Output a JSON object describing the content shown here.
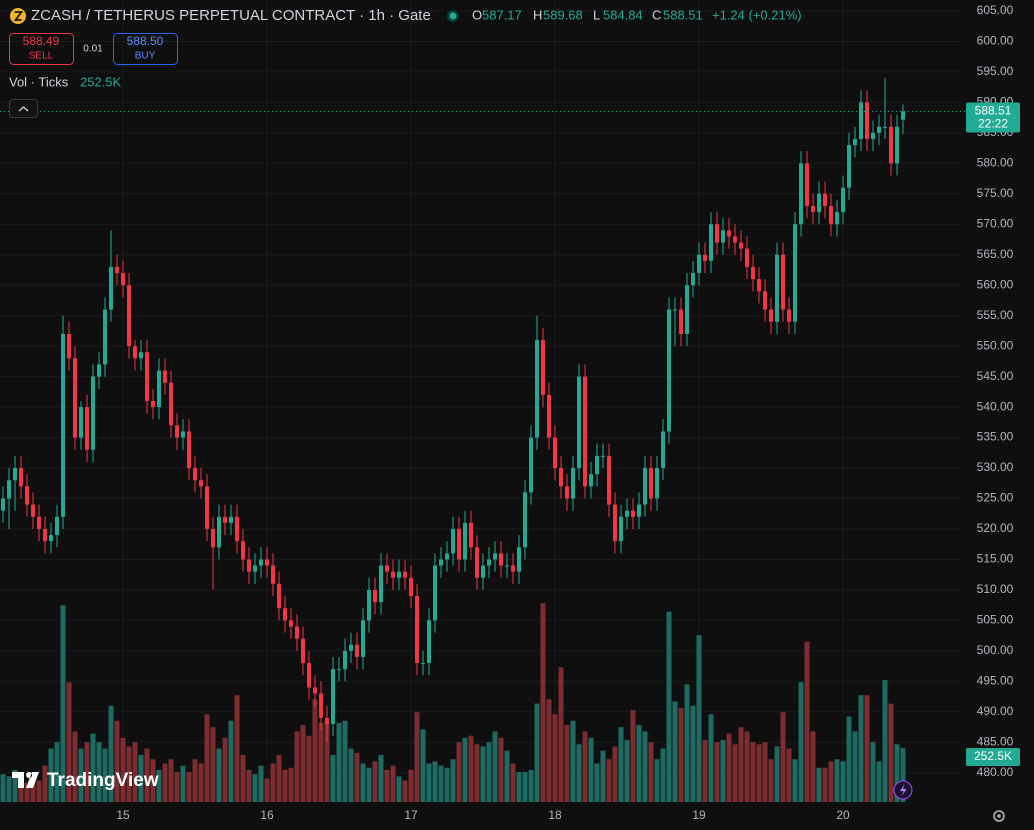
{
  "header": {
    "title": "ZCASH / TETHERUS PERPETUAL CONTRACT · 1h · Gate",
    "ohlc_keys": [
      "O",
      "H",
      "L",
      "C"
    ],
    "change": "+1.24 (+0.21%)",
    "sell_price": "588.49",
    "sell_label": "SELL",
    "spread": "0.01",
    "buy_price": "588.50",
    "buy_label": "BUY",
    "volume_label": "Vol · Ticks",
    "countdown": "22:22",
    "brand": "TradingView"
  },
  "chart_data": {
    "type": "candlestick",
    "categories": [
      null,
      null,
      null,
      null,
      null,
      null,
      null,
      null,
      null,
      null,
      null,
      null,
      null,
      null,
      null,
      null,
      null,
      null,
      null,
      null,
      "15",
      null,
      null,
      null,
      null,
      null,
      null,
      null,
      null,
      null,
      null,
      null,
      null,
      null,
      null,
      null,
      null,
      null,
      null,
      null,
      null,
      null,
      null,
      null,
      "16",
      null,
      null,
      null,
      null,
      null,
      null,
      null,
      null,
      null,
      null,
      null,
      null,
      null,
      null,
      null,
      null,
      null,
      null,
      null,
      null,
      null,
      null,
      null,
      "17",
      null,
      null,
      null,
      null,
      null,
      null,
      null,
      null,
      null,
      null,
      null,
      null,
      null,
      null,
      null,
      null,
      null,
      null,
      null,
      null,
      null,
      null,
      null,
      "18",
      null,
      null,
      null,
      null,
      null,
      null,
      null,
      null,
      null,
      null,
      null,
      null,
      null,
      null,
      null,
      null,
      null,
      null,
      null,
      null,
      null,
      null,
      null,
      "19",
      null,
      null,
      null,
      null,
      null,
      null,
      null,
      null,
      null,
      null,
      null,
      null,
      null,
      null,
      null,
      null,
      null,
      null,
      null,
      null,
      null,
      null,
      null,
      "20",
      null,
      null,
      null,
      null,
      null,
      null,
      null,
      null,
      null,
      null
    ],
    "open": [
      523,
      525,
      528,
      530,
      527,
      524,
      522,
      520,
      518,
      519,
      522,
      552,
      548,
      535,
      540,
      533,
      545,
      547,
      556,
      563,
      562,
      560,
      550,
      548,
      549,
      541,
      540,
      546,
      544,
      537,
      535,
      536,
      530,
      528,
      527,
      520,
      517,
      522,
      521,
      522,
      518,
      515,
      513,
      514,
      515,
      514,
      511,
      507,
      505,
      504,
      502,
      498,
      494,
      493,
      489,
      488,
      497,
      497,
      500,
      501,
      499,
      505,
      510,
      508,
      514,
      513,
      512,
      513,
      512,
      509,
      498,
      498,
      505,
      514,
      515,
      516,
      520,
      515,
      521,
      517,
      512,
      514,
      515,
      516,
      514,
      514,
      513,
      517,
      526,
      535,
      551,
      542,
      535,
      530,
      527,
      525,
      530,
      545,
      527,
      529,
      532,
      532,
      524,
      518,
      522,
      523,
      522,
      524,
      530,
      525,
      530,
      536,
      556,
      556,
      552,
      560,
      562,
      565,
      564,
      570,
      567,
      569,
      568,
      567,
      566,
      563,
      561,
      559,
      556,
      554,
      565,
      556,
      554,
      570,
      580,
      573,
      572,
      575,
      573,
      570,
      572,
      576,
      583,
      584,
      590,
      584,
      585,
      586,
      586,
      580,
      587.17
    ],
    "high": [
      527,
      530,
      532,
      532,
      529,
      526,
      524,
      522,
      521,
      524,
      555,
      554,
      550,
      541,
      542,
      547,
      549,
      558,
      569,
      565,
      564,
      562,
      551,
      551,
      551,
      543,
      548,
      548,
      546,
      539,
      538,
      538,
      532,
      530,
      529,
      522,
      524,
      524,
      524,
      524,
      520,
      517,
      516,
      517,
      517,
      516,
      513,
      509,
      507,
      506,
      504,
      500,
      496,
      495,
      491,
      499,
      499,
      502,
      503,
      503,
      507,
      512,
      512,
      516,
      516,
      515,
      515,
      515,
      514,
      511,
      500,
      507,
      516,
      517,
      518,
      522,
      522,
      523,
      523,
      519,
      516,
      517,
      518,
      518,
      516,
      516,
      519,
      528,
      537,
      555,
      553,
      544,
      537,
      532,
      529,
      532,
      547,
      547,
      531,
      534,
      534,
      534,
      526,
      524,
      525,
      525,
      526,
      532,
      532,
      532,
      538,
      558,
      558,
      558,
      562,
      564,
      567,
      567,
      572,
      572,
      571,
      571,
      570,
      569,
      568,
      565,
      563,
      561,
      558,
      567,
      567,
      558,
      572,
      582,
      582,
      575,
      577,
      577,
      575,
      574,
      578,
      585,
      586,
      592,
      592,
      587,
      588,
      594,
      588,
      588,
      589.68
    ],
    "low": [
      521,
      520,
      523,
      525,
      522,
      520,
      518,
      516,
      516,
      517,
      520,
      546,
      533,
      533,
      531,
      531,
      543,
      545,
      554,
      560,
      558,
      548,
      546,
      546,
      539,
      538,
      538,
      542,
      535,
      533,
      533,
      528,
      526,
      525,
      518,
      510,
      515,
      519,
      519,
      516,
      513,
      511,
      511,
      512,
      512,
      509,
      505,
      503,
      502,
      500,
      496,
      492,
      491,
      487,
      485,
      486,
      495,
      495,
      498,
      497,
      497,
      503,
      506,
      506,
      511,
      510,
      510,
      510,
      507,
      496,
      496,
      496,
      503,
      512,
      513,
      514,
      513,
      513,
      515,
      510,
      510,
      512,
      513,
      512,
      512,
      511,
      511,
      515,
      524,
      533,
      540,
      533,
      528,
      525,
      523,
      523,
      528,
      525,
      525,
      527,
      530,
      522,
      516,
      516,
      520,
      520,
      520,
      522,
      523,
      523,
      528,
      534,
      550,
      550,
      550,
      558,
      560,
      562,
      562,
      565,
      565,
      566,
      565,
      564,
      561,
      559,
      557,
      554,
      552,
      552,
      554,
      552,
      552,
      568,
      571,
      570,
      570,
      571,
      568,
      568,
      570,
      574,
      581,
      582,
      582,
      582,
      583,
      584,
      578,
      578,
      584.84
    ],
    "close": [
      525,
      528,
      530,
      527,
      524,
      522,
      520,
      518,
      519,
      522,
      552,
      548,
      535,
      540,
      533,
      545,
      547,
      556,
      563,
      562,
      560,
      550,
      548,
      549,
      541,
      540,
      546,
      544,
      537,
      535,
      536,
      530,
      528,
      527,
      520,
      517,
      522,
      521,
      522,
      518,
      515,
      513,
      514,
      515,
      514,
      511,
      507,
      505,
      504,
      502,
      498,
      494,
      493,
      489,
      488,
      497,
      497,
      500,
      501,
      499,
      505,
      510,
      508,
      514,
      513,
      512,
      513,
      512,
      509,
      498,
      498,
      505,
      514,
      515,
      516,
      520,
      515,
      521,
      517,
      512,
      514,
      515,
      516,
      514,
      514,
      513,
      517,
      526,
      535,
      551,
      542,
      535,
      530,
      527,
      525,
      530,
      545,
      527,
      529,
      532,
      532,
      524,
      518,
      522,
      523,
      522,
      524,
      530,
      525,
      530,
      536,
      556,
      556,
      552,
      560,
      562,
      565,
      564,
      570,
      567,
      569,
      568,
      567,
      566,
      563,
      561,
      559,
      556,
      554,
      565,
      556,
      554,
      570,
      580,
      573,
      572,
      575,
      573,
      570,
      572,
      576,
      583,
      584,
      590,
      584,
      585,
      586,
      586,
      580,
      586,
      588.51
    ],
    "up_color": "#22ab94",
    "down_color": "#f23645",
    "ylim": [
      475.2,
      606.8
    ],
    "yticks": [
      {
        "value": 480,
        "label": "480.00"
      },
      {
        "value": 485,
        "label": "485.00"
      },
      {
        "value": 490,
        "label": "490.00"
      },
      {
        "value": 495,
        "label": "495.00"
      },
      {
        "value": 500,
        "label": "500.00"
      },
      {
        "value": 505,
        "label": "505.00"
      },
      {
        "value": 510,
        "label": "510.00"
      },
      {
        "value": 515,
        "label": "515.00"
      },
      {
        "value": 520,
        "label": "520.00"
      },
      {
        "value": 525,
        "label": "525.00"
      },
      {
        "value": 530,
        "label": "530.00"
      },
      {
        "value": 535,
        "label": "535.00"
      },
      {
        "value": 540,
        "label": "540.00"
      },
      {
        "value": 545,
        "label": "545.00"
      },
      {
        "value": 550,
        "label": "550.00"
      },
      {
        "value": 555,
        "label": "555.00"
      },
      {
        "value": 560,
        "label": "560.00"
      },
      {
        "value": 565,
        "label": "565.00"
      },
      {
        "value": 570,
        "label": "570.00"
      },
      {
        "value": 575,
        "label": "575.00"
      },
      {
        "value": 580,
        "label": "580.00"
      },
      {
        "value": 585,
        "label": "585.00"
      },
      {
        "value": 590,
        "label": "590.00"
      },
      {
        "value": 595,
        "label": "595.00"
      },
      {
        "value": 600,
        "label": "600.00"
      },
      {
        "value": 605,
        "label": "605.00"
      }
    ],
    "grid": true,
    "volume": {
      "values": [
        130,
        120,
        150,
        110,
        90,
        120,
        100,
        170,
        250,
        280,
        920,
        560,
        330,
        250,
        280,
        320,
        280,
        250,
        450,
        380,
        300,
        260,
        280,
        220,
        250,
        200,
        150,
        180,
        200,
        140,
        170,
        140,
        200,
        180,
        410,
        350,
        250,
        300,
        380,
        500,
        220,
        150,
        130,
        170,
        110,
        180,
        220,
        150,
        160,
        330,
        360,
        310,
        480,
        370,
        380,
        220,
        370,
        380,
        250,
        230,
        180,
        160,
        190,
        220,
        150,
        170,
        120,
        100,
        150,
        420,
        340,
        180,
        190,
        170,
        160,
        200,
        280,
        300,
        310,
        270,
        260,
        280,
        330,
        300,
        240,
        180,
        140,
        140,
        150,
        460,
        930,
        480,
        410,
        630,
        360,
        380,
        270,
        330,
        300,
        180,
        240,
        200,
        260,
        350,
        290,
        430,
        360,
        330,
        280,
        200,
        250,
        890,
        470,
        440,
        550,
        450,
        780,
        290,
        410,
        280,
        290,
        320,
        270,
        350,
        330,
        280,
        270,
        280,
        200,
        260,
        420,
        250,
        200,
        560,
        750,
        330,
        160,
        160,
        190,
        200,
        190,
        400,
        330,
        500,
        500,
        280,
        190,
        570,
        460,
        270,
        252.5
      ],
      "ylim": [
        0,
        3750
      ],
      "last_value_label": "252.5K",
      "up_color": "#1d6b62",
      "down_color": "#7d2c30"
    }
  }
}
